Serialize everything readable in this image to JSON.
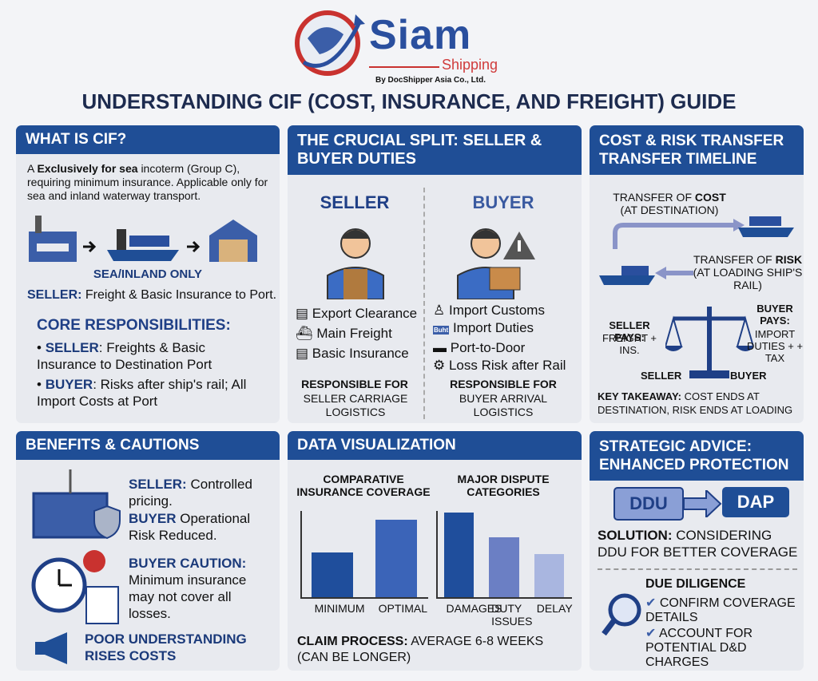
{
  "header": {
    "logo_name": "Siam",
    "logo_sub": "Shipping",
    "logo_by": "By DocShipper Asia Co., Ltd.",
    "title": "UNDERSTANDING CIF (COST, INSURANCE, AND FREIGHT) GUIDE"
  },
  "what_is_cif": {
    "title": "WHAT IS CIF?",
    "intro_a": "A",
    "intro_bold": "Exclusively for sea",
    "intro_rest": "incoterm (Group C), requiring minimum insurance. Applicable only for sea and inland waterway transport.",
    "diagram_label": "SEA/INLAND ONLY",
    "seller_label": "SELLER:",
    "seller_text": "Freight & Basic Insurance to Port.",
    "core_title": "CORE RESPONSIBILITIES:",
    "core": [
      {
        "label": "SELLER",
        "text": ": Freights & Basic Insurance to Destination Port"
      },
      {
        "label": "BUYER",
        "text": ": Risks after ship's rail; All Import Costs at Port"
      }
    ]
  },
  "split": {
    "title": "THE CRUCIAL SPLIT: SELLER & BUYER DUTIES",
    "seller": {
      "heading": "SELLER",
      "items": [
        "Export Clearance",
        "Main Freight",
        "Basic Insurance"
      ],
      "resp_title": "RESPONSIBLE FOR",
      "resp": "SELLER CARRIAGE LOGISTICS"
    },
    "buyer": {
      "heading": "BUYER",
      "icon_label": "Buht",
      "items": [
        "Import Customs",
        "Import Duties",
        "Port-to-Door",
        "Loss Risk after Rail"
      ],
      "resp_title": "RESPONSIBLE FOR",
      "resp": "BUYER ARRIVAL LOGISTICS"
    }
  },
  "timeline": {
    "title": "COST & RISK TRANSFER TRANSFER TIMELINE",
    "cost_label": "TRANSFER OF",
    "cost_word": "COST",
    "cost_note": "(AT DESTINATION)",
    "risk_label": "TRANSFER OF",
    "risk_word": "RISK",
    "risk_note": "(AT LOADING SHIP'S RAIL)",
    "seller_pays_label": "SELLER PAYS:",
    "seller_pays": "FREIGHT + INS.",
    "buyer_pays_label": "BUYER PAYS:",
    "buyer_pays": "IMPORT DUTIES + + TAX",
    "scale_left": "SELLER",
    "scale_right": "BUYER",
    "takeaway_label": "KEY TAKEAWAY:",
    "takeaway": "COST ENDS AT DESTINATION, RISK ENDS AT LOADING"
  },
  "benefits": {
    "title": "BENEFITS & CAUTIONS",
    "items": [
      {
        "label": "SELLER:",
        "text": "Controlled pricing."
      },
      {
        "label": "BUYER",
        "text": "Operational Risk Reduced."
      }
    ],
    "caution_label": "BUYER CAUTION:",
    "caution": "Minimum insurance may not cover all losses.",
    "poor": "POOR UNDERSTANDING RISES COSTS"
  },
  "data_viz": {
    "title": "DATA VISUALIZATION",
    "charts": [
      {
        "type": "bar",
        "title": "COMPARATIVE INSURANCE COVERAGE",
        "categories": [
          "MINIMUM",
          "OPTIMAL"
        ],
        "values": [
          52,
          90
        ],
        "ylim": [
          0,
          100
        ],
        "colors": [
          "#1f4e9c",
          "#3b64b8"
        ]
      },
      {
        "type": "bar",
        "title": "MAJOR DISPUTE CATEGORIES",
        "categories": [
          "DAMAGES",
          "DUTY ISSUES",
          "DELAY"
        ],
        "values": [
          98,
          69,
          50
        ],
        "ylim": [
          0,
          100
        ],
        "colors": [
          "#1f4e9c",
          "#6b7fc4",
          "#a9b6e0"
        ]
      }
    ],
    "claim_label": "CLAIM PROCESS:",
    "claim": "AVERAGE 6-8 WEEKS (CAN BE LONGER)"
  },
  "advice": {
    "title": "STRATEGIC ADVICE: ENHANCED PROTECTION",
    "from": "DDU",
    "to": "DAP",
    "solution_label": "SOLUTION:",
    "solution": "CONSIDERING DDU FOR BETTER COVERAGE",
    "diligence_title": "DUE DILIGENCE",
    "checks": [
      "CONFIRM COVERAGE DETAILS",
      "ACCOUNT FOR POTENTIAL D&D CHARGES"
    ]
  }
}
